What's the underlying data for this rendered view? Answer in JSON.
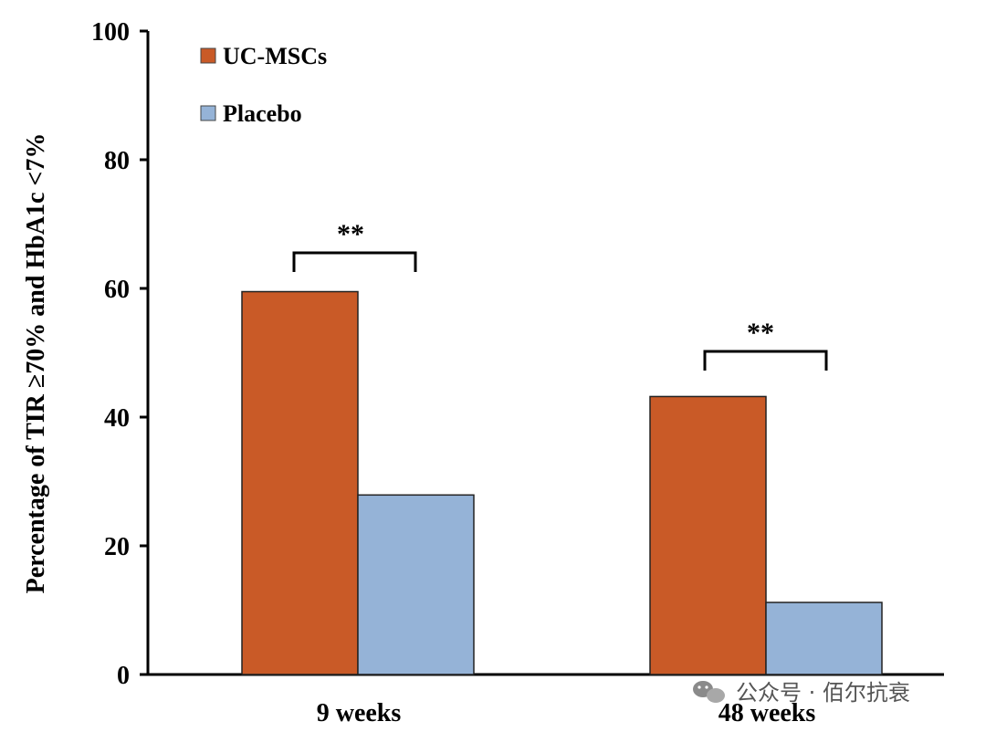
{
  "chart_data": {
    "type": "bar",
    "categories": [
      "9 weeks",
      "48 weeks"
    ],
    "series": [
      {
        "name": "UC-MSCs",
        "color": "#c95a27",
        "values": [
          59.5,
          43.2
        ]
      },
      {
        "name": "Placebo",
        "color": "#95b3d7",
        "values": [
          27.9,
          11.2
        ]
      }
    ],
    "ylabel": "Percentage of TIR ≥70% and HbA1c <7%",
    "xlabel": "",
    "ylim": [
      0,
      100
    ],
    "yticks": [
      0,
      20,
      40,
      60,
      80,
      100
    ],
    "grid": false,
    "legend_position": "top-left",
    "annotations": [
      {
        "category": "9 weeks",
        "text": "**"
      },
      {
        "category": "48 weeks",
        "text": "**"
      }
    ]
  },
  "watermark": {
    "icon": "wechat-icon",
    "text": "公众号 · 佰尔抗衰"
  }
}
